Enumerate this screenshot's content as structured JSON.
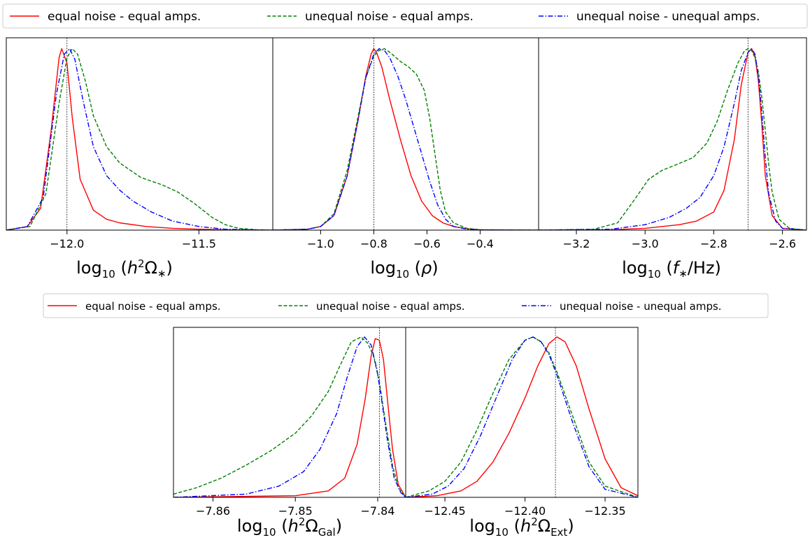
{
  "legend_items": [
    {
      "label": "equal noise - equal amps.",
      "color": "#ff0000",
      "dash": "solid"
    },
    {
      "label": "unequal noise - equal amps.",
      "color": "#008000",
      "dash": "dashed"
    },
    {
      "label": "unequal noise - unequal amps.",
      "color": "#0000ff",
      "dash": "dashdot"
    }
  ],
  "chart_data": [
    {
      "type": "line",
      "xlabel": "log₁₀ (h²Ω*)",
      "xlim": [
        -12.23,
        -11.22
      ],
      "ylim": [
        0,
        1.06
      ],
      "xticks": [
        -12.0,
        -11.5
      ],
      "xtick_labels": [
        "−12.0",
        "−11.5"
      ],
      "truth": -12.0,
      "series": [
        {
          "name": "equal noise - equal amps.",
          "x": [
            -12.23,
            -12.15,
            -12.1,
            -12.06,
            -12.03,
            -12.02,
            -12.0,
            -11.98,
            -11.95,
            -11.9,
            -11.85,
            -11.8,
            -11.7,
            -11.6,
            -11.5,
            -11.4,
            -11.22
          ],
          "y": [
            0,
            0.02,
            0.12,
            0.55,
            0.95,
            1.0,
            0.92,
            0.62,
            0.28,
            0.11,
            0.06,
            0.04,
            0.02,
            0.01,
            0.005,
            0.002,
            0
          ]
        },
        {
          "name": "unequal noise - equal amps.",
          "x": [
            -12.23,
            -12.14,
            -12.08,
            -12.03,
            -12.0,
            -11.98,
            -11.96,
            -11.93,
            -11.9,
            -11.85,
            -11.8,
            -11.72,
            -11.64,
            -11.58,
            -11.52,
            -11.45,
            -11.4,
            -11.35,
            -11.28,
            -11.22
          ],
          "y": [
            0,
            0.02,
            0.2,
            0.7,
            0.95,
            1.0,
            0.97,
            0.82,
            0.63,
            0.46,
            0.37,
            0.29,
            0.25,
            0.21,
            0.15,
            0.07,
            0.03,
            0.01,
            0.002,
            0
          ]
        },
        {
          "name": "unequal noise - unequal amps.",
          "x": [
            -12.23,
            -12.15,
            -12.09,
            -12.04,
            -12.01,
            -11.99,
            -11.97,
            -11.94,
            -11.9,
            -11.85,
            -11.8,
            -11.75,
            -11.68,
            -11.6,
            -11.5,
            -11.4,
            -11.22
          ],
          "y": [
            0,
            0.02,
            0.18,
            0.75,
            0.97,
            1.0,
            0.94,
            0.72,
            0.46,
            0.3,
            0.22,
            0.16,
            0.1,
            0.05,
            0.02,
            0.005,
            0
          ]
        }
      ]
    },
    {
      "type": "line",
      "xlabel": "log₁₀ (ρ)",
      "xlim": [
        -1.18,
        -0.18
      ],
      "ylim": [
        0,
        1.06
      ],
      "xticks": [
        -1.0,
        -0.8,
        -0.6,
        -0.4
      ],
      "xtick_labels": [
        "−1.0",
        "−0.8",
        "−0.6",
        "−0.4"
      ],
      "truth": -0.8,
      "series": [
        {
          "name": "equal noise - equal amps.",
          "x": [
            -1.18,
            -1.05,
            -1.0,
            -0.95,
            -0.9,
            -0.86,
            -0.83,
            -0.81,
            -0.8,
            -0.79,
            -0.77,
            -0.74,
            -0.7,
            -0.66,
            -0.62,
            -0.58,
            -0.54,
            -0.5,
            -0.45,
            -0.4,
            -0.18
          ],
          "y": [
            0,
            0.005,
            0.02,
            0.08,
            0.3,
            0.6,
            0.85,
            0.97,
            1.0,
            0.98,
            0.9,
            0.72,
            0.5,
            0.3,
            0.16,
            0.08,
            0.04,
            0.02,
            0.008,
            0.002,
            0
          ]
        },
        {
          "name": "unequal noise - equal amps.",
          "x": [
            -1.18,
            -1.05,
            -1.0,
            -0.95,
            -0.9,
            -0.86,
            -0.83,
            -0.8,
            -0.78,
            -0.76,
            -0.74,
            -0.7,
            -0.67,
            -0.64,
            -0.61,
            -0.59,
            -0.57,
            -0.55,
            -0.53,
            -0.5,
            -0.45,
            -0.4,
            -0.18
          ],
          "y": [
            0,
            0.005,
            0.02,
            0.09,
            0.33,
            0.62,
            0.84,
            0.96,
            0.99,
            1.0,
            0.98,
            0.93,
            0.9,
            0.86,
            0.77,
            0.62,
            0.42,
            0.22,
            0.1,
            0.04,
            0.01,
            0.002,
            0
          ]
        },
        {
          "name": "unequal noise - unequal amps.",
          "x": [
            -1.18,
            -1.05,
            -1.0,
            -0.95,
            -0.9,
            -0.86,
            -0.83,
            -0.8,
            -0.78,
            -0.76,
            -0.74,
            -0.71,
            -0.68,
            -0.65,
            -0.62,
            -0.59,
            -0.56,
            -0.53,
            -0.5,
            -0.45,
            -0.4,
            -0.18
          ],
          "y": [
            0,
            0.005,
            0.02,
            0.08,
            0.3,
            0.6,
            0.84,
            0.97,
            1.0,
            0.99,
            0.95,
            0.85,
            0.72,
            0.57,
            0.42,
            0.27,
            0.14,
            0.06,
            0.02,
            0.005,
            0.001,
            0
          ]
        }
      ]
    },
    {
      "type": "line",
      "xlabel": "log₁₀ (f*/Hz)",
      "xlim": [
        -3.31,
        -2.53
      ],
      "ylim": [
        0,
        1.06
      ],
      "xticks": [
        -3.2,
        -3.0,
        -2.8,
        -2.6
      ],
      "xtick_labels": [
        "−3.2",
        "−3.0",
        "−2.8",
        "−2.6"
      ],
      "truth": -2.7,
      "series": [
        {
          "name": "equal noise - equal amps.",
          "x": [
            -3.31,
            -3.1,
            -3.0,
            -2.9,
            -2.85,
            -2.8,
            -2.77,
            -2.74,
            -2.72,
            -2.7,
            -2.69,
            -2.68,
            -2.67,
            -2.66,
            -2.65,
            -2.63,
            -2.6,
            -2.53
          ],
          "y": [
            0,
            0.002,
            0.01,
            0.03,
            0.05,
            0.1,
            0.22,
            0.5,
            0.8,
            0.98,
            1.0,
            0.96,
            0.82,
            0.58,
            0.3,
            0.08,
            0.01,
            0
          ]
        },
        {
          "name": "unequal noise - equal amps.",
          "x": [
            -3.31,
            -3.15,
            -3.08,
            -3.03,
            -2.99,
            -2.95,
            -2.91,
            -2.86,
            -2.82,
            -2.79,
            -2.76,
            -2.73,
            -2.71,
            -2.7,
            -2.69,
            -2.68,
            -2.67,
            -2.66,
            -2.65,
            -2.64,
            -2.63,
            -2.61,
            -2.58,
            -2.53
          ],
          "y": [
            0,
            0.005,
            0.04,
            0.17,
            0.28,
            0.33,
            0.36,
            0.4,
            0.48,
            0.6,
            0.77,
            0.92,
            0.99,
            1.0,
            0.99,
            0.95,
            0.87,
            0.73,
            0.55,
            0.36,
            0.21,
            0.06,
            0.01,
            0
          ]
        },
        {
          "name": "unequal noise - unequal amps.",
          "x": [
            -3.31,
            -3.1,
            -3.0,
            -2.93,
            -2.88,
            -2.84,
            -2.8,
            -2.77,
            -2.74,
            -2.72,
            -2.7,
            -2.69,
            -2.68,
            -2.67,
            -2.66,
            -2.65,
            -2.64,
            -2.62,
            -2.6,
            -2.53
          ],
          "y": [
            0,
            0.005,
            0.03,
            0.07,
            0.12,
            0.18,
            0.3,
            0.46,
            0.7,
            0.88,
            0.98,
            1.0,
            0.97,
            0.85,
            0.65,
            0.4,
            0.2,
            0.05,
            0.01,
            0
          ]
        }
      ]
    },
    {
      "type": "line",
      "xlabel": "log₁₀ (h²Ω_Gal)",
      "xlim": [
        -7.8648,
        -7.8366
      ],
      "ylim": [
        0,
        1.06
      ],
      "xticks": [
        -7.86,
        -7.85,
        -7.84
      ],
      "xtick_labels": [
        "−7.86",
        "−7.85",
        "−7.84"
      ],
      "truth": -7.8398,
      "series": [
        {
          "name": "equal noise - equal amps.",
          "x": [
            -7.8648,
            -7.85,
            -7.846,
            -7.844,
            -7.8425,
            -7.8415,
            -7.8408,
            -7.8403,
            -7.8398,
            -7.8393,
            -7.8388,
            -7.8382,
            -7.8375,
            -7.8366
          ],
          "y": [
            0,
            0.01,
            0.04,
            0.12,
            0.33,
            0.62,
            0.88,
            0.99,
            0.98,
            0.86,
            0.6,
            0.3,
            0.08,
            0
          ]
        },
        {
          "name": "unequal noise - equal amps.",
          "x": [
            -7.8648,
            -7.862,
            -7.859,
            -7.856,
            -7.853,
            -7.85,
            -7.848,
            -7.846,
            -7.8445,
            -7.8432,
            -7.842,
            -7.8412,
            -7.8405,
            -7.8398,
            -7.839,
            -7.8382,
            -7.8375,
            -7.8366
          ],
          "y": [
            0.02,
            0.06,
            0.12,
            0.2,
            0.29,
            0.4,
            0.51,
            0.66,
            0.83,
            0.97,
            1.0,
            0.96,
            0.88,
            0.72,
            0.45,
            0.2,
            0.06,
            0
          ]
        },
        {
          "name": "unequal noise - unequal amps.",
          "x": [
            -7.8648,
            -7.856,
            -7.852,
            -7.849,
            -7.847,
            -7.845,
            -7.8437,
            -7.8425,
            -7.8416,
            -7.8408,
            -7.8401,
            -7.8395,
            -7.8388,
            -7.838,
            -7.8372,
            -7.8366
          ],
          "y": [
            0,
            0.02,
            0.07,
            0.16,
            0.3,
            0.52,
            0.75,
            0.94,
            1.0,
            0.95,
            0.8,
            0.6,
            0.35,
            0.12,
            0.03,
            0
          ]
        }
      ]
    },
    {
      "type": "line",
      "xlabel": "log₁₀ (h²Ω_Ext)",
      "xlim": [
        -12.4745,
        -12.3295
      ],
      "ylim": [
        0,
        1.06
      ],
      "xticks": [
        -12.45,
        -12.4,
        -12.35
      ],
      "xtick_labels": [
        "−12.45",
        "−12.40",
        "−12.35"
      ],
      "truth": -12.381,
      "series": [
        {
          "name": "equal noise - equal amps.",
          "x": [
            -12.4745,
            -12.455,
            -12.44,
            -12.43,
            -12.42,
            -12.41,
            -12.4,
            -12.392,
            -12.385,
            -12.38,
            -12.375,
            -12.368,
            -12.36,
            -12.35,
            -12.34,
            -12.3295
          ],
          "y": [
            0,
            0.01,
            0.04,
            0.1,
            0.22,
            0.4,
            0.62,
            0.82,
            0.96,
            1.0,
            0.97,
            0.82,
            0.55,
            0.24,
            0.06,
            0.01
          ]
        },
        {
          "name": "unequal noise - equal amps.",
          "x": [
            -12.4745,
            -12.46,
            -12.45,
            -12.44,
            -12.43,
            -12.42,
            -12.41,
            -12.4,
            -12.395,
            -12.39,
            -12.385,
            -12.38,
            -12.37,
            -12.36,
            -12.35,
            -12.3295
          ],
          "y": [
            0,
            0.04,
            0.1,
            0.22,
            0.42,
            0.65,
            0.86,
            0.98,
            1.0,
            0.97,
            0.9,
            0.78,
            0.5,
            0.22,
            0.07,
            0
          ]
        },
        {
          "name": "unequal noise - unequal amps.",
          "x": [
            -12.4745,
            -12.458,
            -12.448,
            -12.438,
            -12.428,
            -12.418,
            -12.408,
            -12.4,
            -12.395,
            -12.39,
            -12.385,
            -12.38,
            -12.37,
            -12.36,
            -12.35,
            -12.3295
          ],
          "y": [
            0,
            0.02,
            0.07,
            0.18,
            0.38,
            0.62,
            0.86,
            0.98,
            1.0,
            0.97,
            0.89,
            0.76,
            0.46,
            0.19,
            0.05,
            0
          ]
        }
      ]
    }
  ]
}
